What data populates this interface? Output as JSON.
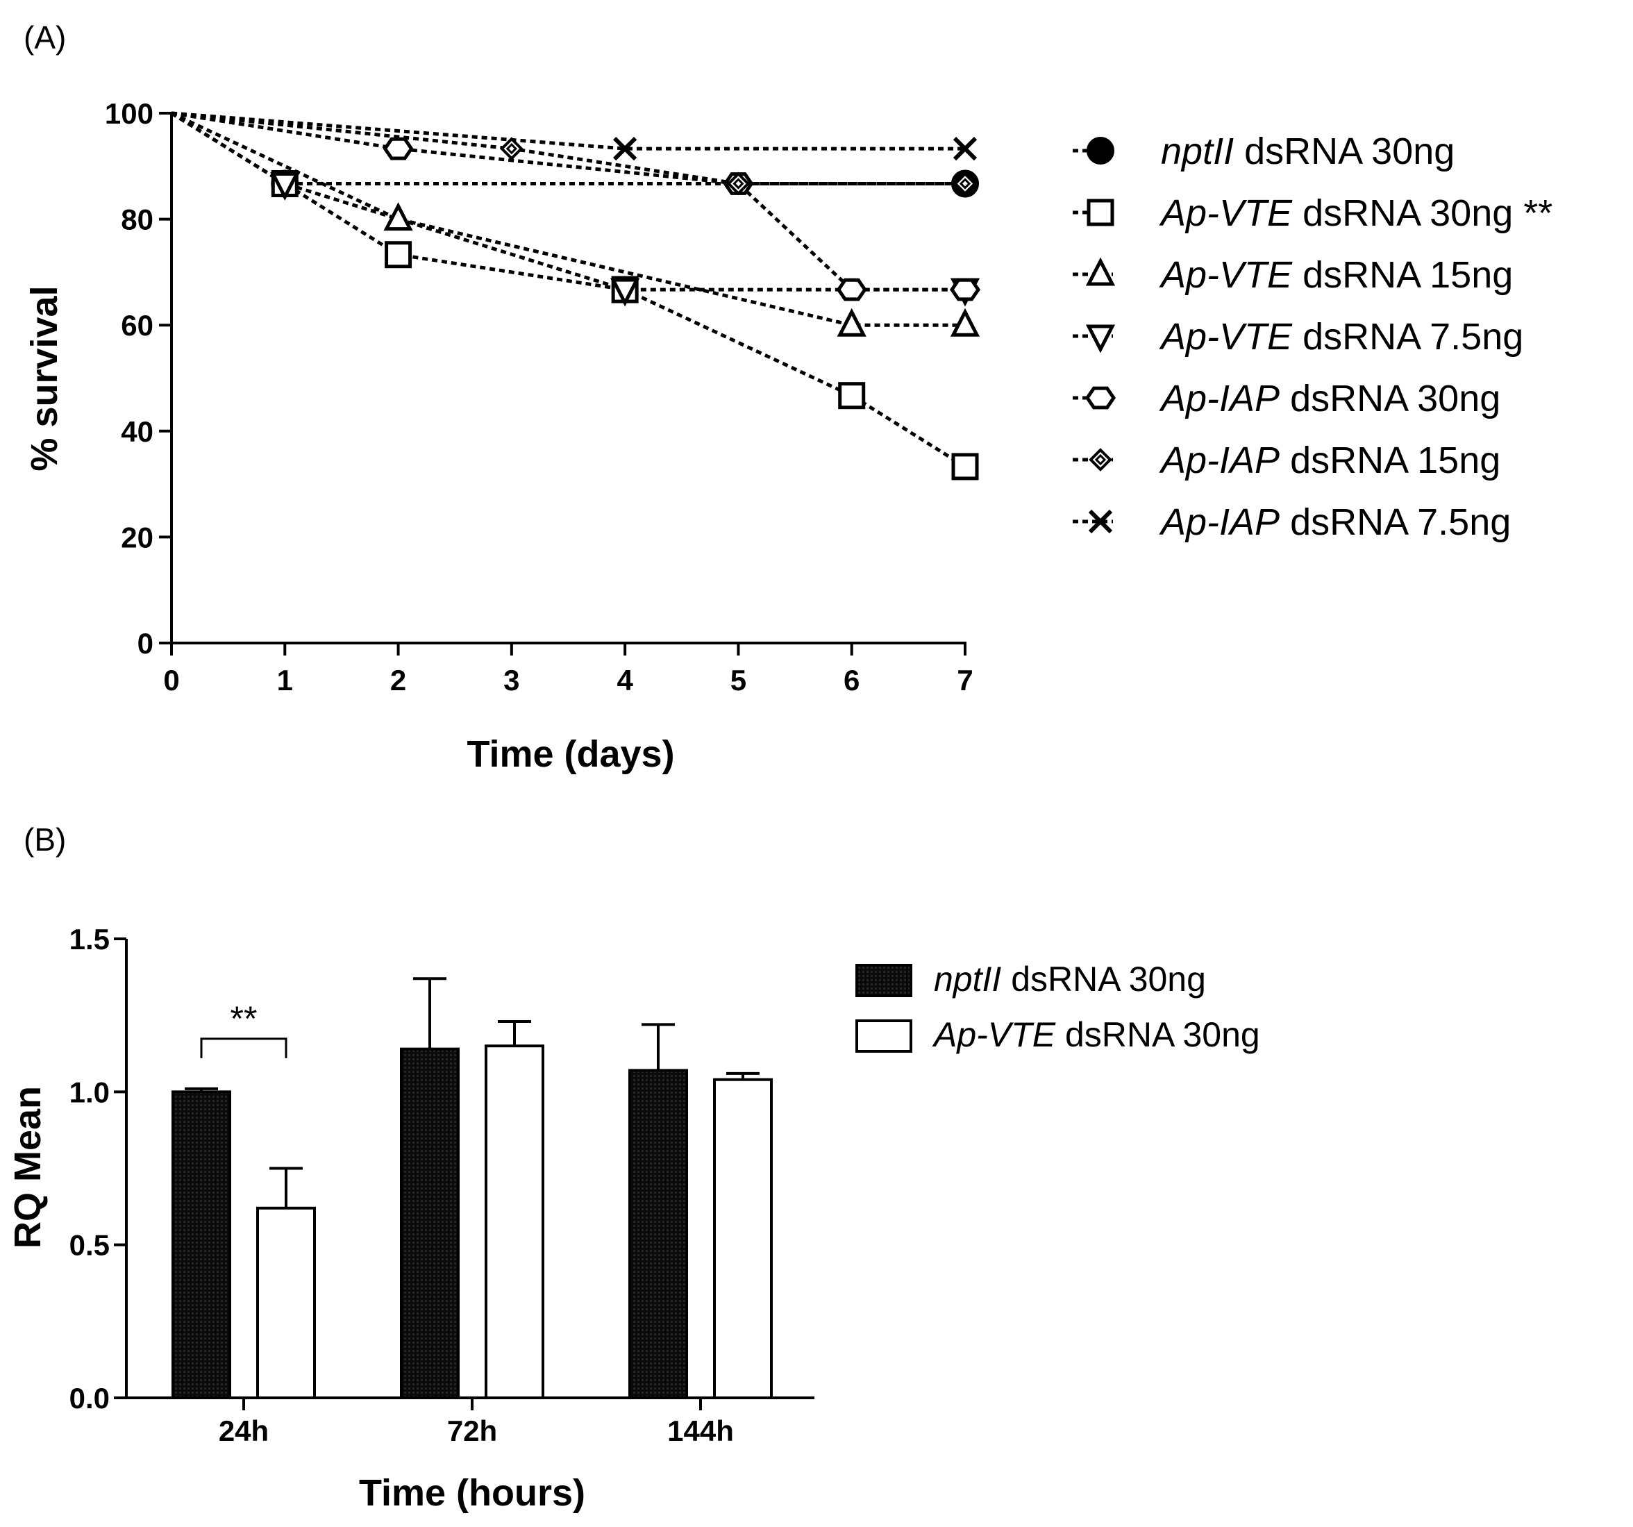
{
  "chart_data": [
    {
      "panel": "(A)",
      "type": "line",
      "xlabel": "Time (days)",
      "ylabel": "% survival",
      "xlim": [
        0,
        7
      ],
      "ylim": [
        0,
        100
      ],
      "xticks": [
        0,
        1,
        2,
        3,
        4,
        5,
        6,
        7
      ],
      "yticks": [
        0,
        20,
        40,
        60,
        80,
        100
      ],
      "series": [
        {
          "gene": "nptII",
          "suffix": " dsRNA 30ng",
          "marker": "filled-circle",
          "x": [
            0,
            1,
            7
          ],
          "y": [
            100,
            86.7,
            86.7
          ]
        },
        {
          "gene": "Ap-VTE",
          "suffix": " dsRNA 30ng **",
          "marker": "open-square",
          "x": [
            0,
            1,
            2,
            4,
            6,
            7
          ],
          "y": [
            100,
            86.7,
            73.3,
            66.7,
            46.7,
            33.3
          ]
        },
        {
          "gene": "Ap-VTE",
          "suffix": " dsRNA 15ng",
          "marker": "open-triangle-up",
          "x": [
            0,
            2,
            6,
            7
          ],
          "y": [
            100,
            80,
            60,
            60
          ]
        },
        {
          "gene": "Ap-VTE",
          "suffix": " dsRNA 7.5ng",
          "marker": "open-triangle-down",
          "x": [
            0,
            1,
            4,
            7
          ],
          "y": [
            100,
            86.7,
            66.7,
            66.7
          ]
        },
        {
          "gene": "Ap-IAP",
          "suffix": "  dsRNA 30ng",
          "marker": "open-hexagon",
          "x": [
            0,
            2,
            5,
            6,
            7
          ],
          "y": [
            100,
            93.3,
            86.7,
            66.7,
            66.7
          ]
        },
        {
          "gene": "Ap-IAP",
          "suffix": "  dsRNA 15ng",
          "marker": "open-diamond",
          "x": [
            0,
            3,
            5,
            7
          ],
          "y": [
            100,
            93.3,
            86.7,
            86.7
          ]
        },
        {
          "gene": "Ap-IAP",
          "suffix": "  dsRNA 7.5ng",
          "marker": "x-cross",
          "x": [
            0,
            4,
            7
          ],
          "y": [
            100,
            93.3,
            93.3
          ]
        }
      ]
    },
    {
      "panel": "(B)",
      "type": "bar",
      "xlabel": "Time (hours)",
      "ylabel": "RQ Mean",
      "ylim": [
        0,
        1.5
      ],
      "yticks": [
        "0.0",
        "0.5",
        "1.0",
        "1.5"
      ],
      "categories": [
        "24h",
        "72h",
        "144h"
      ],
      "series": [
        {
          "gene": "nptII",
          "suffix": " dsRNA 30ng",
          "fill": "#111111",
          "values": [
            1.0,
            1.14,
            1.07
          ],
          "error": [
            0.01,
            0.23,
            0.15
          ]
        },
        {
          "gene": "Ap-VTE",
          "suffix": " dsRNA 30ng",
          "fill": "#ffffff",
          "values": [
            0.62,
            1.15,
            1.04
          ],
          "error": [
            0.13,
            0.08,
            0.02
          ]
        }
      ],
      "annotation": {
        "text": "**",
        "category": "24h"
      }
    }
  ]
}
